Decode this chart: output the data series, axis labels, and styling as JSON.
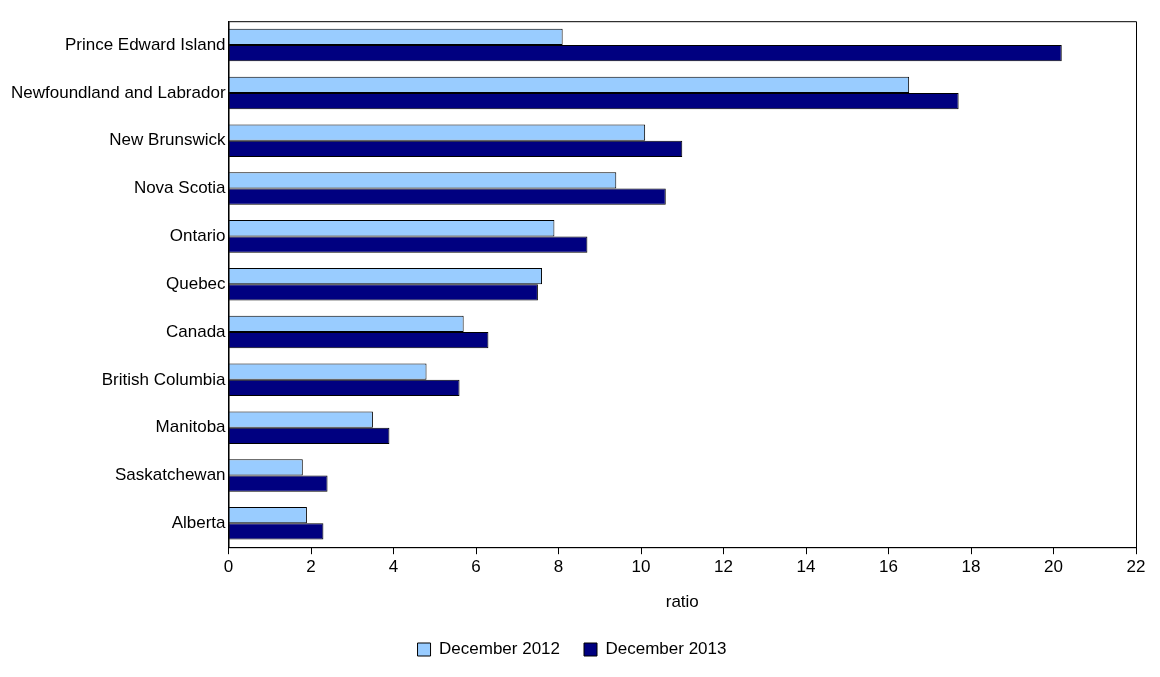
{
  "chart_data": {
    "type": "bar",
    "orientation": "horizontal",
    "xlabel": "ratio",
    "categories": [
      "Prince Edward Island",
      "Newfoundland and Labrador",
      "New Brunswick",
      "Nova Scotia",
      "Ontario",
      "Quebec",
      "Canada",
      "British Columbia",
      "Manitoba",
      "Saskatchewan",
      "Alberta"
    ],
    "series": [
      {
        "name": "December 2012",
        "color": "#99ccff",
        "values": [
          8.1,
          16.5,
          10.1,
          9.4,
          7.9,
          7.6,
          5.7,
          4.8,
          3.5,
          1.8,
          1.9
        ]
      },
      {
        "name": "December 2013",
        "color": "#000080",
        "values": [
          20.2,
          17.7,
          11.0,
          10.6,
          8.7,
          7.5,
          6.3,
          5.6,
          3.9,
          2.4,
          2.3
        ]
      }
    ],
    "xlim": [
      0,
      22
    ],
    "xticks": [
      0,
      2,
      4,
      6,
      8,
      10,
      12,
      14,
      16,
      18,
      20,
      22
    ],
    "grid": false,
    "legend": "bottom"
  }
}
